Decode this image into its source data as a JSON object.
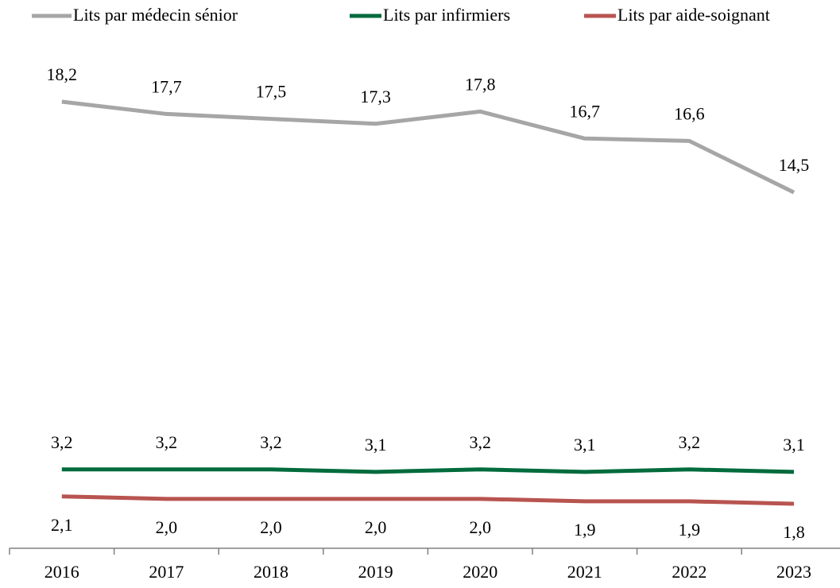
{
  "chart_data": {
    "type": "line",
    "categories": [
      "2016",
      "2017",
      "2018",
      "2019",
      "2020",
      "2021",
      "2022",
      "2023"
    ],
    "series": [
      {
        "name": "Lits par médecin sénior",
        "color": "#a6a6a6",
        "values": [
          18.2,
          17.7,
          17.5,
          17.3,
          17.8,
          16.7,
          16.6,
          14.5
        ],
        "value_labels": [
          "18,2",
          "17,7",
          "17,5",
          "17,3",
          "17,8",
          "16,7",
          "16,6",
          "14,5"
        ]
      },
      {
        "name": "Lits par infirmiers",
        "color": "#006b3c",
        "values": [
          3.2,
          3.2,
          3.2,
          3.1,
          3.2,
          3.1,
          3.2,
          3.1
        ],
        "value_labels": [
          "3,2",
          "3,2",
          "3,2",
          "3,1",
          "3,2",
          "3,1",
          "3,2",
          "3,1"
        ]
      },
      {
        "name": "Lits par aide-soignant",
        "color": "#b85450",
        "values": [
          2.1,
          2.0,
          2.0,
          2.0,
          2.0,
          1.9,
          1.9,
          1.8
        ],
        "value_labels": [
          "2,1",
          "2,0",
          "2,0",
          "2,0",
          "2,0",
          "1,9",
          "1,9",
          "1,8"
        ]
      }
    ]
  }
}
